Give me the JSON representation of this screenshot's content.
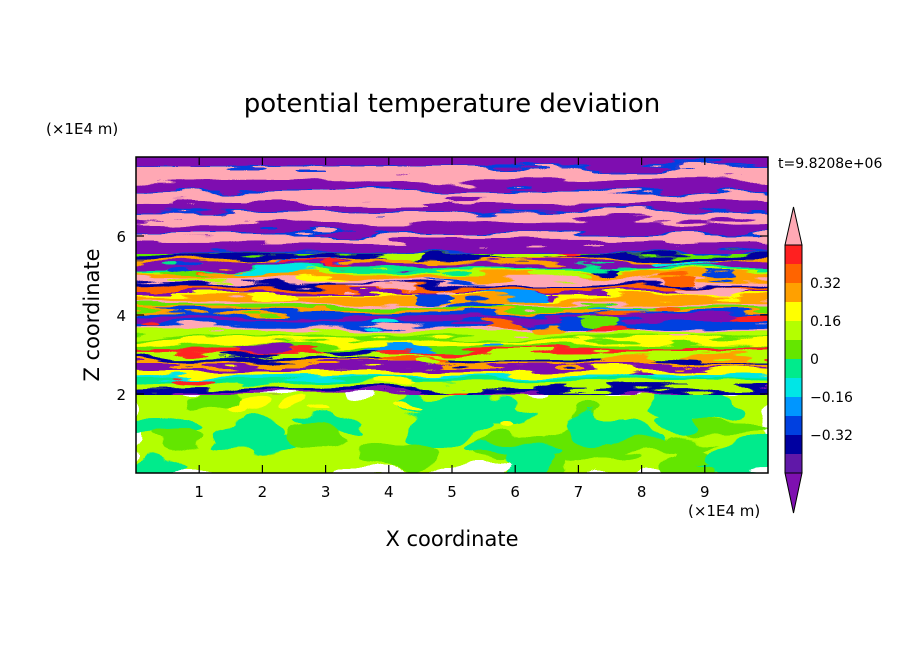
{
  "chart_data": {
    "type": "heatmap",
    "title": "potential temperature deviation",
    "xlabel": "X coordinate",
    "ylabel": "Z coordinate",
    "x_unit": "(×1E4 m)",
    "z_unit": "(×1E4 m)",
    "time_label": "t=9.8208e+06",
    "xlim": [
      0,
      10
    ],
    "zlim": [
      0,
      8
    ],
    "x_ticks": [
      1,
      2,
      3,
      4,
      5,
      6,
      7,
      8,
      9
    ],
    "z_ticks": [
      2,
      4,
      6
    ],
    "colorbar": {
      "levels": [
        -0.48,
        -0.4,
        -0.32,
        -0.24,
        -0.16,
        -0.08,
        0,
        0.08,
        0.16,
        0.24,
        0.32,
        0.4,
        0.48
      ],
      "tick_labels": [
        "0.32",
        "0.16",
        "0",
        "−0.16",
        "−0.32"
      ],
      "tick_values": [
        0.32,
        0.16,
        0,
        -0.16,
        -0.32
      ],
      "colors_high_to_low": [
        "#ffa8b4",
        "#ff2020",
        "#ff6400",
        "#ffa000",
        "#ffff00",
        "#b4ff00",
        "#64e600",
        "#00eb8c",
        "#00e6e6",
        "#0096ff",
        "#0040e0",
        "#0000a0",
        "#6018a8",
        "#7e10b0"
      ]
    },
    "layers": [
      {
        "z": [
          0.0,
          2.0
        ],
        "pattern": "green mottled (light green / mint)"
      },
      {
        "z": [
          2.0,
          5.7
        ],
        "pattern": "dense banded multicolor"
      },
      {
        "z": [
          5.7,
          8.0
        ],
        "pattern": "alternating pink and purple bands"
      }
    ]
  }
}
